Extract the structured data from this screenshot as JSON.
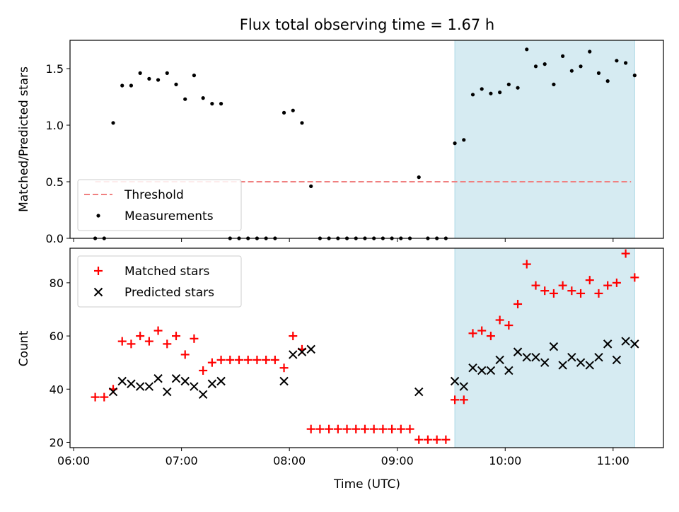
{
  "chart_data": {
    "title": "Flux total observing time = 1.67 h",
    "xlabel": "Time (UTC)",
    "x_tick_labels": [
      "06:00",
      "07:00",
      "08:00",
      "09:00",
      "10:00",
      "11:00"
    ],
    "x_range": [
      "05:58",
      "11:28"
    ],
    "highlight_window": {
      "start": "09:32",
      "end": "11:12",
      "color": "#add8e6"
    },
    "panels": [
      {
        "type": "scatter",
        "ylabel": "Matched/Predicted stars",
        "ylim": [
          0,
          1.75
        ],
        "y_ticks": [
          "0.0",
          "0.5",
          "1.0",
          "1.5"
        ],
        "legend_position": "lower-left",
        "threshold": {
          "name": "Threshold",
          "value": 0.5,
          "start": "06:12",
          "end": "11:10",
          "color": "#f08080"
        },
        "series": [
          {
            "name": "Measurements",
            "color": "#000000",
            "marker": "dot",
            "points": [
              [
                "06:12",
                0.0
              ],
              [
                "06:17",
                0.0
              ],
              [
                "06:22",
                1.02
              ],
              [
                "06:27",
                1.35
              ],
              [
                "06:32",
                1.35
              ],
              [
                "06:37",
                1.46
              ],
              [
                "06:42",
                1.41
              ],
              [
                "06:47",
                1.4
              ],
              [
                "06:52",
                1.46
              ],
              [
                "06:57",
                1.36
              ],
              [
                "07:02",
                1.23
              ],
              [
                "07:07",
                1.44
              ],
              [
                "07:12",
                1.24
              ],
              [
                "07:17",
                1.19
              ],
              [
                "07:22",
                1.19
              ],
              [
                "07:27",
                0.0
              ],
              [
                "07:32",
                0.0
              ],
              [
                "07:37",
                0.0
              ],
              [
                "07:42",
                0.0
              ],
              [
                "07:47",
                0.0
              ],
              [
                "07:52",
                0.0
              ],
              [
                "07:57",
                1.11
              ],
              [
                "08:02",
                1.13
              ],
              [
                "08:07",
                1.02
              ],
              [
                "08:12",
                0.46
              ],
              [
                "08:17",
                0.0
              ],
              [
                "08:22",
                0.0
              ],
              [
                "08:27",
                0.0
              ],
              [
                "08:32",
                0.0
              ],
              [
                "08:37",
                0.0
              ],
              [
                "08:42",
                0.0
              ],
              [
                "08:47",
                0.0
              ],
              [
                "08:52",
                0.0
              ],
              [
                "08:57",
                0.0
              ],
              [
                "09:02",
                0.0
              ],
              [
                "09:07",
                0.0
              ],
              [
                "09:12",
                0.54
              ],
              [
                "09:17",
                0.0
              ],
              [
                "09:22",
                0.0
              ],
              [
                "09:27",
                0.0
              ],
              [
                "09:32",
                0.84
              ],
              [
                "09:37",
                0.87
              ],
              [
                "09:42",
                1.27
              ],
              [
                "09:47",
                1.32
              ],
              [
                "09:52",
                1.28
              ],
              [
                "09:57",
                1.29
              ],
              [
                "10:02",
                1.36
              ],
              [
                "10:07",
                1.33
              ],
              [
                "10:12",
                1.67
              ],
              [
                "10:17",
                1.52
              ],
              [
                "10:22",
                1.54
              ],
              [
                "10:27",
                1.36
              ],
              [
                "10:32",
                1.61
              ],
              [
                "10:37",
                1.48
              ],
              [
                "10:42",
                1.52
              ],
              [
                "10:47",
                1.65
              ],
              [
                "10:52",
                1.46
              ],
              [
                "10:57",
                1.39
              ],
              [
                "11:02",
                1.57
              ],
              [
                "11:07",
                1.55
              ],
              [
                "11:12",
                1.44
              ]
            ]
          }
        ]
      },
      {
        "type": "scatter",
        "ylabel": "Count",
        "ylim": [
          18,
          93
        ],
        "y_ticks": [
          "20",
          "40",
          "60",
          "80"
        ],
        "legend_position": "upper-left",
        "series": [
          {
            "name": "Matched stars",
            "color": "#ff0000",
            "marker": "plus",
            "points": [
              [
                "06:12",
                37
              ],
              [
                "06:17",
                37
              ],
              [
                "06:22",
                40
              ],
              [
                "06:27",
                58
              ],
              [
                "06:32",
                57
              ],
              [
                "06:37",
                60
              ],
              [
                "06:42",
                58
              ],
              [
                "06:47",
                62
              ],
              [
                "06:52",
                57
              ],
              [
                "06:57",
                60
              ],
              [
                "07:02",
                53
              ],
              [
                "07:07",
                59
              ],
              [
                "07:12",
                47
              ],
              [
                "07:17",
                50
              ],
              [
                "07:22",
                51
              ],
              [
                "07:27",
                51
              ],
              [
                "07:32",
                51
              ],
              [
                "07:37",
                51
              ],
              [
                "07:42",
                51
              ],
              [
                "07:47",
                51
              ],
              [
                "07:52",
                51
              ],
              [
                "07:57",
                48
              ],
              [
                "08:02",
                60
              ],
              [
                "08:07",
                55
              ],
              [
                "08:12",
                25
              ],
              [
                "08:17",
                25
              ],
              [
                "08:22",
                25
              ],
              [
                "08:27",
                25
              ],
              [
                "08:32",
                25
              ],
              [
                "08:37",
                25
              ],
              [
                "08:42",
                25
              ],
              [
                "08:47",
                25
              ],
              [
                "08:52",
                25
              ],
              [
                "08:57",
                25
              ],
              [
                "09:02",
                25
              ],
              [
                "09:07",
                25
              ],
              [
                "09:12",
                21
              ],
              [
                "09:17",
                21
              ],
              [
                "09:22",
                21
              ],
              [
                "09:27",
                21
              ],
              [
                "09:32",
                36
              ],
              [
                "09:37",
                36
              ],
              [
                "09:42",
                61
              ],
              [
                "09:47",
                62
              ],
              [
                "09:52",
                60
              ],
              [
                "09:57",
                66
              ],
              [
                "10:02",
                64
              ],
              [
                "10:07",
                72
              ],
              [
                "10:12",
                87
              ],
              [
                "10:17",
                79
              ],
              [
                "10:22",
                77
              ],
              [
                "10:27",
                76
              ],
              [
                "10:32",
                79
              ],
              [
                "10:37",
                77
              ],
              [
                "10:42",
                76
              ],
              [
                "10:47",
                81
              ],
              [
                "10:52",
                76
              ],
              [
                "10:57",
                79
              ],
              [
                "11:02",
                80
              ],
              [
                "11:07",
                91
              ],
              [
                "11:12",
                82
              ]
            ]
          },
          {
            "name": "Predicted stars",
            "color": "#000000",
            "marker": "x",
            "points": [
              [
                "06:22",
                39
              ],
              [
                "06:27",
                43
              ],
              [
                "06:32",
                42
              ],
              [
                "06:37",
                41
              ],
              [
                "06:42",
                41
              ],
              [
                "06:47",
                44
              ],
              [
                "06:52",
                39
              ],
              [
                "06:57",
                44
              ],
              [
                "07:02",
                43
              ],
              [
                "07:07",
                41
              ],
              [
                "07:12",
                38
              ],
              [
                "07:17",
                42
              ],
              [
                "07:22",
                43
              ],
              [
                "07:57",
                43
              ],
              [
                "08:02",
                53
              ],
              [
                "08:07",
                54
              ],
              [
                "08:12",
                55
              ],
              [
                "09:12",
                39
              ],
              [
                "09:32",
                43
              ],
              [
                "09:37",
                41
              ],
              [
                "09:42",
                48
              ],
              [
                "09:47",
                47
              ],
              [
                "09:52",
                47
              ],
              [
                "09:57",
                51
              ],
              [
                "10:02",
                47
              ],
              [
                "10:07",
                54
              ],
              [
                "10:12",
                52
              ],
              [
                "10:17",
                52
              ],
              [
                "10:22",
                50
              ],
              [
                "10:27",
                56
              ],
              [
                "10:32",
                49
              ],
              [
                "10:37",
                52
              ],
              [
                "10:42",
                50
              ],
              [
                "10:47",
                49
              ],
              [
                "10:52",
                52
              ],
              [
                "10:57",
                57
              ],
              [
                "11:02",
                51
              ],
              [
                "11:07",
                58
              ],
              [
                "11:12",
                57
              ]
            ]
          }
        ]
      }
    ]
  }
}
